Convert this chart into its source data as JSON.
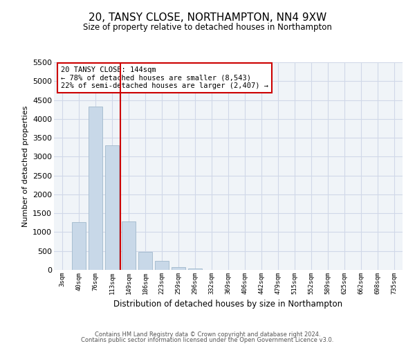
{
  "title": "20, TANSY CLOSE, NORTHAMPTON, NN4 9XW",
  "subtitle": "Size of property relative to detached houses in Northampton",
  "xlabel": "Distribution of detached houses by size in Northampton",
  "ylabel": "Number of detached properties",
  "bar_color": "#c8d8e8",
  "bar_edge_color": "#a0b8cc",
  "vline_color": "#cc0000",
  "annotation_text": "20 TANSY CLOSE: 144sqm\n← 78% of detached houses are smaller (8,543)\n22% of semi-detached houses are larger (2,407) →",
  "annotation_box_color": "#cc0000",
  "grid_color": "#d0d8e8",
  "categories": [
    "3sqm",
    "40sqm",
    "76sqm",
    "113sqm",
    "149sqm",
    "186sqm",
    "223sqm",
    "259sqm",
    "296sqm",
    "332sqm",
    "369sqm",
    "406sqm",
    "442sqm",
    "479sqm",
    "515sqm",
    "552sqm",
    "589sqm",
    "625sqm",
    "662sqm",
    "698sqm",
    "735sqm"
  ],
  "values": [
    0,
    1260,
    4330,
    3300,
    1290,
    480,
    230,
    75,
    45,
    0,
    0,
    0,
    0,
    0,
    0,
    0,
    0,
    0,
    0,
    0,
    0
  ],
  "ylim": [
    0,
    5500
  ],
  "yticks": [
    0,
    500,
    1000,
    1500,
    2000,
    2500,
    3000,
    3500,
    4000,
    4500,
    5000,
    5500
  ],
  "footer1": "Contains HM Land Registry data © Crown copyright and database right 2024.",
  "footer2": "Contains public sector information licensed under the Open Government Licence v3.0.",
  "background_color": "#ffffff",
  "plot_bg_color": "#f0f4f8"
}
